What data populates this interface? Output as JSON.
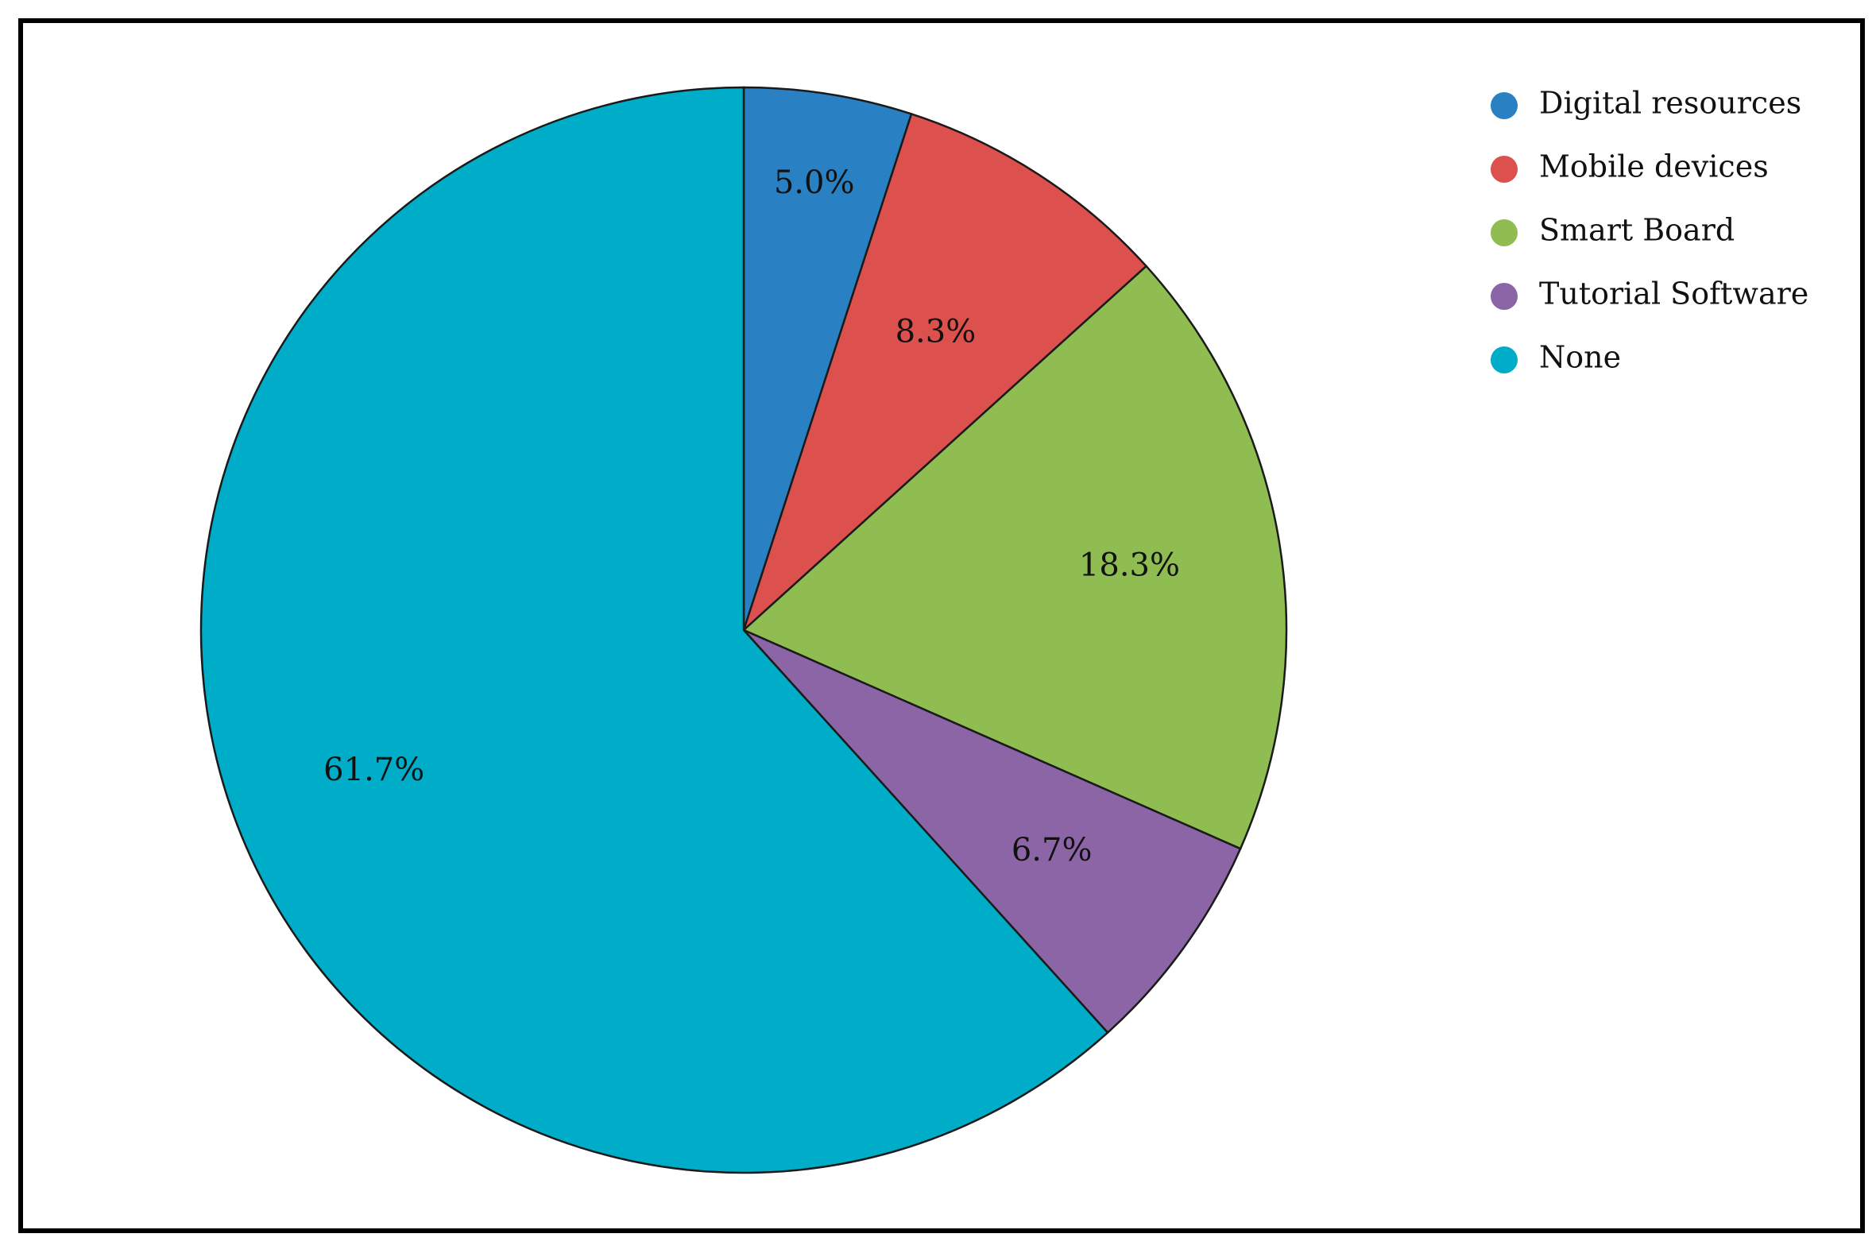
{
  "chart_data": {
    "type": "pie",
    "categories": [
      "Digital resources",
      "Mobile devices",
      "Smart Board",
      "Tutorial Software",
      "None"
    ],
    "values": [
      5.0,
      8.3,
      18.3,
      6.7,
      61.7
    ],
    "labels": [
      "5.0%",
      "8.3%",
      "18.3%",
      "6.7%",
      "61.7%"
    ],
    "colors": [
      "#2980c2",
      "#dc504e",
      "#8fbd51",
      "#8b65a6",
      "#00adc8"
    ],
    "start_angle": "12 o'clock",
    "direction": "clockwise",
    "legend_position": "top-right",
    "title": ""
  }
}
